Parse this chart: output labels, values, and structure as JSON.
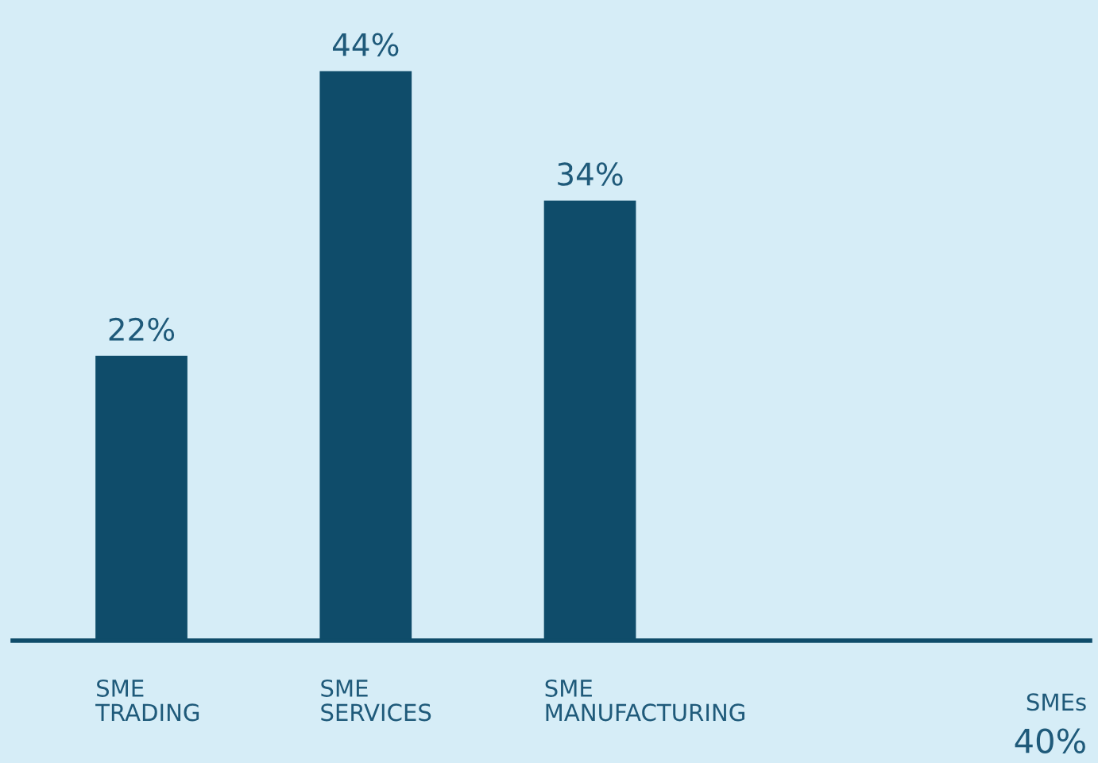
{
  "chart_data": {
    "type": "bar",
    "categories": [
      "SME\nTRADING",
      "SME\nSERVICES",
      "SME\nMANUFACTURING"
    ],
    "values": [
      22,
      44,
      34
    ],
    "color": "#0f4c6a",
    "data_labels": true,
    "value_labels": [
      "22%",
      "44%",
      "34%"
    ],
    "annotations": [
      "SMEs",
      "40%"
    ]
  }
}
